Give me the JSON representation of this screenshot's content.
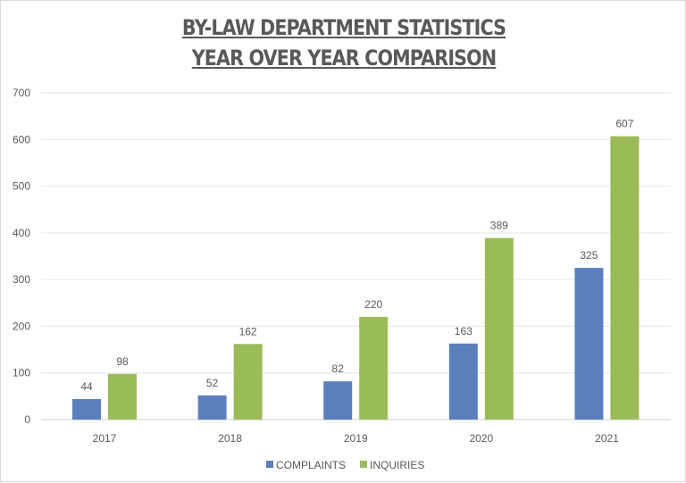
{
  "chart_data": {
    "type": "bar",
    "title": [
      "BY-LAW DEPARTMENT STATISTICS",
      "YEAR OVER YEAR COMPARISON"
    ],
    "categories": [
      "2017",
      "2018",
      "2019",
      "2020",
      "2021"
    ],
    "series": [
      {
        "name": "COMPLAINTS",
        "values": [
          44,
          52,
          82,
          163,
          325
        ],
        "color": "#5b7fbd"
      },
      {
        "name": "INQUIRIES",
        "values": [
          98,
          162,
          220,
          389,
          607
        ],
        "color": "#9bbb59"
      }
    ],
    "xlabel": "",
    "ylabel": "",
    "ylim": [
      0,
      700
    ],
    "yticks": [
      "0",
      "100",
      "200",
      "300",
      "400",
      "500",
      "600",
      "700"
    ],
    "grid": true,
    "legend": "bottom"
  }
}
